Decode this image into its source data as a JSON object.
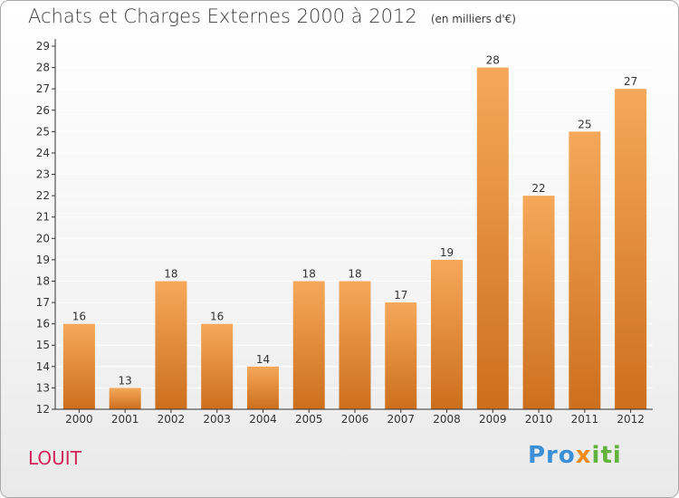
{
  "header": {
    "title": "Achats et Charges Externes 2000 à 2012",
    "subtitle": "(en milliers d'€)"
  },
  "footer": {
    "commune": "LOUIT",
    "brand_parts": [
      "Pro",
      "x",
      "iti"
    ]
  },
  "colors": {
    "bar_top": "#f6a85a",
    "bar_bottom": "#cc6f1c",
    "axis": "#333333",
    "grid": "#ffffff",
    "commune": "#d0245a",
    "brand_blue": "#3a8fd6",
    "brand_orange": "#f28a1c",
    "brand_green": "#61b33b"
  },
  "chart_data": {
    "type": "bar",
    "title": "Achats et Charges Externes 2000 à 2012",
    "subtitle": "(en milliers d'€)",
    "categories": [
      "2000",
      "2001",
      "2002",
      "2003",
      "2004",
      "2005",
      "2006",
      "2007",
      "2008",
      "2009",
      "2010",
      "2011",
      "2012"
    ],
    "values": [
      16,
      13,
      18,
      16,
      14,
      18,
      18,
      17,
      19,
      28,
      22,
      25,
      27
    ],
    "ylim": [
      12,
      29
    ],
    "yticks": [
      12,
      13,
      14,
      15,
      16,
      17,
      18,
      19,
      20,
      21,
      22,
      23,
      24,
      25,
      26,
      27,
      28,
      29
    ],
    "data_labels": true,
    "grid": true,
    "legend": "none"
  }
}
